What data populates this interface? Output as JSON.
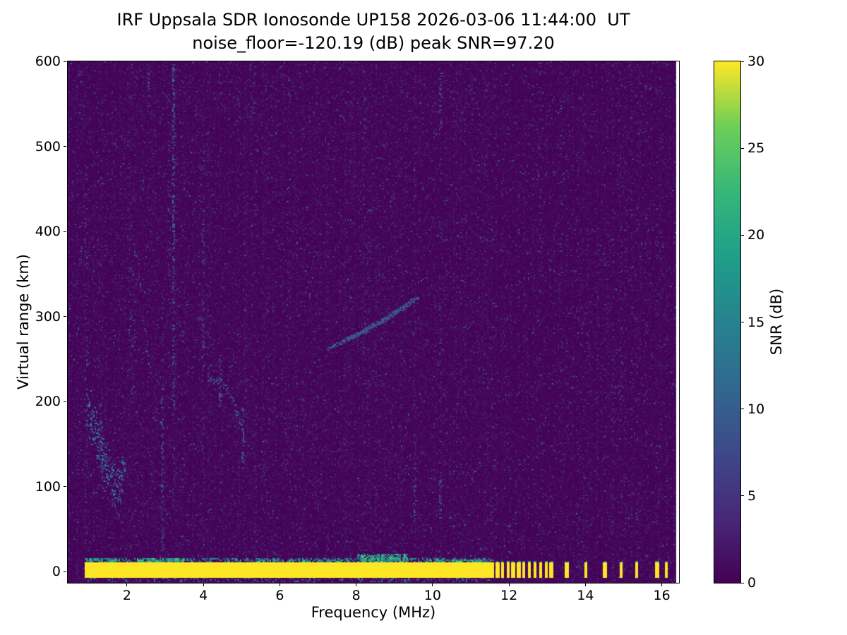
{
  "chart_data": {
    "type": "heatmap",
    "title": "IRF Uppsala SDR Ionosonde UP158 2026-03-06 11:44:00  UT",
    "subtitle": "noise_floor=-120.19 (dB) peak SNR=97.20",
    "xlabel": "Frequency (MHz)",
    "ylabel": "Virtual range (km)",
    "colorbar_label": "SNR (dB)",
    "xlim": [
      0.45,
      16.45
    ],
    "ylim": [
      -13,
      600
    ],
    "clim": [
      0,
      30
    ],
    "xticks": [
      2,
      4,
      6,
      8,
      10,
      12,
      14,
      16
    ],
    "yticks": [
      0,
      100,
      200,
      300,
      400,
      500,
      600
    ],
    "cticks": [
      0,
      5,
      10,
      15,
      20,
      25,
      30
    ],
    "colormap": "viridis",
    "colormap_stops": [
      "#440154",
      "#482878",
      "#3e4989",
      "#31688e",
      "#26828e",
      "#1f9e89",
      "#35b779",
      "#6ece58",
      "#fde725"
    ],
    "data_f_max": 16.38,
    "background_noise": {
      "mean_snr": 0.55,
      "speckle_prob": 0.05,
      "speckle_max": 5,
      "bright_prob": 0.006,
      "bright_max": 11
    },
    "ground_band": {
      "f_min": 0.93,
      "f_continuous_max": 11.62,
      "r": [
        -7,
        10.8
      ],
      "snr": 30,
      "dash_width_mhz": 0.07,
      "fringe_boosts": [
        {
          "f": [
            0.95,
            1.7
          ],
          "r": [
            10,
            15
          ],
          "d": 0.35
        },
        {
          "f": [
            2.2,
            3.5
          ],
          "r": [
            10,
            16
          ],
          "d": 0.4
        },
        {
          "f": [
            5.4,
            7.6
          ],
          "r": [
            10,
            14
          ],
          "d": 0.25
        },
        {
          "f": [
            8.05,
            9.35
          ],
          "r": [
            10,
            20
          ],
          "d": 0.5
        },
        {
          "f": [
            9.9,
            11.35
          ],
          "r": [
            10,
            14
          ],
          "d": 0.3
        }
      ]
    },
    "ground_dashes": [
      11.7,
      11.84,
      11.98,
      12.12,
      12.26,
      12.4,
      12.54,
      12.68,
      12.84,
      12.98,
      13.12,
      13.52,
      14.02,
      14.52,
      14.95,
      15.35,
      15.88,
      16.12
    ],
    "scatter_regions": [
      {
        "pts": [
          [
            0.95,
            185
          ],
          [
            1.15,
            165
          ],
          [
            1.35,
            140
          ],
          [
            1.55,
            112
          ],
          [
            1.7,
            98
          ],
          [
            1.85,
            108
          ],
          [
            1.95,
            125
          ]
        ],
        "spread": 35,
        "d": 0.6,
        "n": 8,
        "snr": [
          3,
          17
        ]
      },
      {
        "pts": [
          [
            0.95,
            255
          ],
          [
            1.2,
            235
          ],
          [
            1.5,
            205
          ]
        ],
        "spread": 60,
        "d": 0.1,
        "n": 4,
        "snr": [
          2,
          9
        ]
      }
    ],
    "echo_traces": [
      {
        "pts": [
          [
            2.06,
            285
          ],
          [
            2.14,
            330
          ],
          [
            2.21,
            382
          ]
        ],
        "thick": 9,
        "d": 0.4,
        "n": 3,
        "snr": [
          3,
          13
        ]
      },
      {
        "pts": [
          [
            2.21,
            382
          ],
          [
            2.3,
            362
          ],
          [
            2.4,
            310
          ],
          [
            2.5,
            268
          ],
          [
            2.6,
            240
          ]
        ],
        "thick": 9,
        "d": 0.32,
        "n": 3,
        "snr": [
          3,
          12
        ]
      },
      {
        "pts": [
          [
            4.12,
            228
          ],
          [
            4.5,
            222
          ],
          [
            4.75,
            205
          ],
          [
            4.95,
            178
          ],
          [
            5.1,
            148
          ]
        ],
        "thick": 5,
        "d": 0.5,
        "n": 2,
        "snr": [
          3,
          13
        ]
      },
      {
        "pts": [
          [
            7.25,
            262
          ],
          [
            8.3,
            284
          ],
          [
            9.4,
            314
          ]
        ],
        "thick": 2.2,
        "d": 0.8,
        "n": 2,
        "snr": [
          4,
          11
        ]
      },
      {
        "pts": [
          [
            7.8,
            273
          ],
          [
            8.65,
            295
          ],
          [
            9.65,
            323
          ]
        ],
        "thick": 2.2,
        "d": 0.8,
        "n": 2,
        "snr": [
          4,
          11
        ]
      }
    ],
    "echo_verticals": [
      {
        "f": 0.92,
        "r": [
          30,
          480
        ],
        "d": 0.13,
        "w": 0.07,
        "snr": [
          2,
          9
        ]
      },
      {
        "f": 1.32,
        "r": [
          60,
          215
        ],
        "d": 0.2,
        "w": 0.06,
        "snr": [
          2,
          10
        ]
      },
      {
        "f": 2.17,
        "r": [
          200,
          300
        ],
        "d": 0.16,
        "w": 0.1,
        "snr": [
          2,
          9
        ]
      },
      {
        "f": 2.55,
        "r": [
          540,
          595
        ],
        "d": 0.25,
        "w": 0.06,
        "snr": [
          2,
          9
        ]
      },
      {
        "f": 2.92,
        "r": [
          25,
          215
        ],
        "d": 0.3,
        "w": 0.07,
        "snr": [
          2,
          11
        ]
      },
      {
        "f": 2.92,
        "r": [
          215,
          330
        ],
        "d": 0.12,
        "w": 0.07,
        "snr": [
          2,
          8
        ]
      },
      {
        "f": 3.1,
        "r": [
          300,
          560
        ],
        "d": 0.1,
        "w": 0.06,
        "snr": [
          2,
          8
        ]
      },
      {
        "f": 3.22,
        "r": [
          380,
          595
        ],
        "d": 0.45,
        "w": 0.09,
        "snr": [
          3,
          14
        ]
      },
      {
        "f": 3.22,
        "r": [
          185,
          380
        ],
        "d": 0.3,
        "w": 0.09,
        "snr": [
          3,
          12
        ]
      },
      {
        "f": 3.22,
        "r": [
          60,
          185
        ],
        "d": 0.15,
        "w": 0.07,
        "snr": [
          2,
          9
        ]
      },
      {
        "f": 3.98,
        "r": [
          140,
          420
        ],
        "d": 0.17,
        "w": 0.07,
        "snr": [
          2,
          10
        ]
      },
      {
        "f": 3.93,
        "r": [
          430,
          500
        ],
        "d": 0.12,
        "w": 0.06,
        "snr": [
          2,
          8
        ]
      },
      {
        "f": 4.45,
        "r": [
          195,
          255
        ],
        "d": 0.3,
        "w": 0.06,
        "snr": [
          3,
          11
        ]
      },
      {
        "f": 5.05,
        "r": [
          115,
          190
        ],
        "d": 0.35,
        "w": 0.07,
        "snr": [
          3,
          12
        ]
      },
      {
        "f": 5.25,
        "r": [
          550,
          595
        ],
        "d": 0.15,
        "w": 0.05,
        "snr": [
          2,
          8
        ]
      },
      {
        "f": 8.22,
        "r": [
          0,
          595
        ],
        "d": 0.07,
        "w": 0.06,
        "snr": [
          2,
          8
        ]
      },
      {
        "f": 8.52,
        "r": [
          0,
          595
        ],
        "d": 0.05,
        "w": 0.05,
        "snr": [
          2,
          7
        ]
      },
      {
        "f": 9.55,
        "r": [
          60,
          120
        ],
        "d": 0.35,
        "w": 0.07,
        "snr": [
          3,
          11
        ]
      },
      {
        "f": 9.55,
        "r": [
          120,
          595
        ],
        "d": 0.06,
        "w": 0.06,
        "snr": [
          2,
          7
        ]
      },
      {
        "f": 10.22,
        "r": [
          0,
          595
        ],
        "d": 0.07,
        "w": 0.06,
        "snr": [
          2,
          8
        ]
      },
      {
        "f": 10.22,
        "r": [
          520,
          590
        ],
        "d": 0.3,
        "w": 0.06,
        "snr": [
          3,
          10
        ]
      },
      {
        "f": 10.22,
        "r": [
          60,
          110
        ],
        "d": 0.3,
        "w": 0.06,
        "snr": [
          3,
          10
        ]
      },
      {
        "f": 11.05,
        "r": [
          0,
          595
        ],
        "d": 0.05,
        "w": 0.05,
        "snr": [
          2,
          7
        ]
      },
      {
        "f": 11.55,
        "r": [
          20,
          100
        ],
        "d": 0.15,
        "w": 0.06,
        "snr": [
          2,
          9
        ]
      }
    ],
    "rfi_comb": {
      "freqs": [
        11.97,
        12.25,
        12.52,
        12.8,
        13.08,
        13.35,
        13.52,
        13.8,
        14.02,
        14.3,
        14.52,
        14.75,
        14.95,
        15.2,
        15.35,
        15.6,
        15.88,
        16.12
      ],
      "r": [
        0,
        595
      ],
      "d": 0.06,
      "w": 0.05,
      "snr": [
        2,
        7
      ]
    }
  }
}
